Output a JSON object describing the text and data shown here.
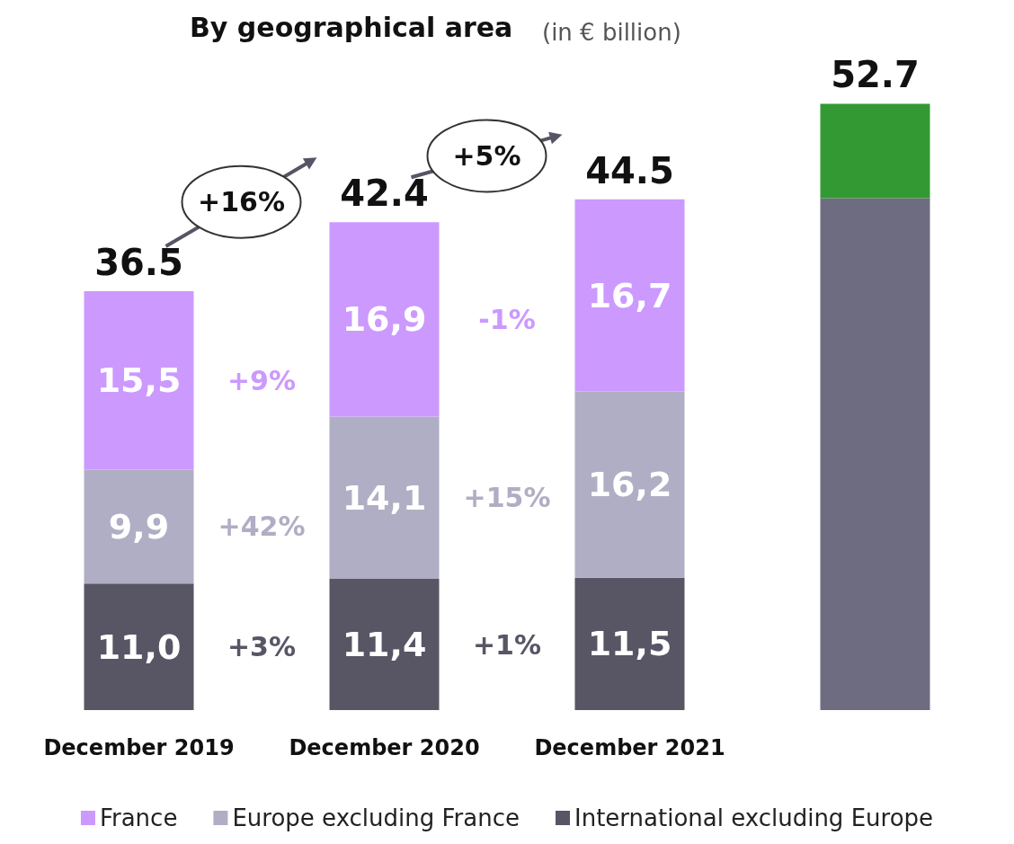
{
  "chart_data": {
    "type": "bar",
    "title": "By geographical area",
    "subtitle": "(in € billion)",
    "categories": [
      "December 2019",
      "December 2020",
      "December 2021",
      null
    ],
    "stacked": true,
    "legend": "bottom",
    "series": [
      {
        "name": "International excluding Europe",
        "color": "#585565",
        "values": [
          11.0,
          11.4,
          11.5,
          null
        ],
        "value_labels": [
          "11,0",
          "11,4",
          "11,5",
          null
        ]
      },
      {
        "name": "Europe excluding France",
        "color": "#b0aec4",
        "values": [
          9.9,
          14.1,
          16.2,
          null
        ],
        "value_labels": [
          "9,9",
          "14,1",
          "16,2",
          null
        ]
      },
      {
        "name": "France",
        "color": "#cc99ff",
        "values": [
          15.5,
          16.9,
          16.7,
          null
        ],
        "value_labels": [
          "15,5",
          "16,9",
          "16,7",
          null
        ]
      },
      {
        "color": "#6e6c80",
        "values": [
          null,
          null,
          null,
          44.5
        ]
      },
      {
        "color": "#339933",
        "values": [
          null,
          null,
          null,
          8.2
        ]
      }
    ],
    "totals": [
      "36.5",
      "42.4",
      "44.5",
      "52.7"
    ],
    "annotations": [
      "+3%",
      "+42%",
      "+9%",
      "+1%",
      "+15%",
      "-1%",
      "+16%",
      "+5%"
    ]
  }
}
